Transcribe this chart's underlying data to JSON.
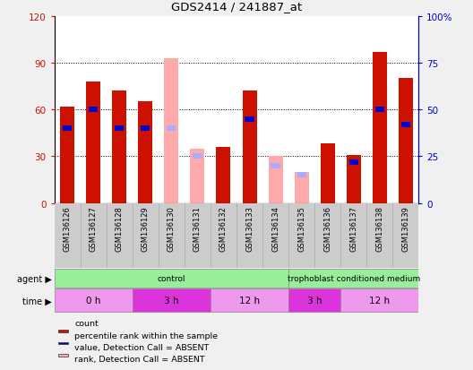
{
  "title": "GDS2414 / 241887_at",
  "samples": [
    "GSM136126",
    "GSM136127",
    "GSM136128",
    "GSM136129",
    "GSM136130",
    "GSM136131",
    "GSM136132",
    "GSM136133",
    "GSM136134",
    "GSM136135",
    "GSM136136",
    "GSM136137",
    "GSM136138",
    "GSM136139"
  ],
  "count_present": [
    62,
    78,
    72,
    65,
    0,
    0,
    36,
    72,
    0,
    0,
    38,
    31,
    97,
    80
  ],
  "rank_present": [
    40,
    50,
    40,
    40,
    0,
    0,
    0,
    45,
    0,
    0,
    0,
    22,
    50,
    42
  ],
  "count_absent": [
    0,
    0,
    0,
    0,
    93,
    35,
    0,
    0,
    30,
    20,
    0,
    0,
    0,
    0
  ],
  "rank_absent": [
    0,
    0,
    0,
    0,
    40,
    25,
    0,
    0,
    20,
    15,
    0,
    0,
    0,
    0
  ],
  "ylim_left": [
    0,
    120
  ],
  "ylim_right": [
    0,
    100
  ],
  "yticks_left": [
    0,
    30,
    60,
    90,
    120
  ],
  "yticks_right": [
    0,
    25,
    50,
    75,
    100
  ],
  "ytick_labels_left": [
    "0",
    "30",
    "60",
    "90",
    "120"
  ],
  "ytick_labels_right": [
    "0",
    "25",
    "50",
    "75",
    "100%"
  ],
  "color_count_present": "#cc1100",
  "color_rank_present": "#0000cc",
  "color_count_absent": "#ffaaaa",
  "color_rank_absent": "#aaaaff",
  "bg_color": "#f0f0f0",
  "plot_bg": "#ffffff",
  "sample_bg": "#cccccc",
  "agent_groups": [
    {
      "label": "control",
      "start": 0,
      "end": 9,
      "color": "#99ee99"
    },
    {
      "label": "trophoblast conditioned medium",
      "start": 9,
      "end": 14,
      "color": "#99ee99"
    }
  ],
  "time_groups": [
    {
      "label": "0 h",
      "start": 0,
      "end": 3,
      "color": "#ee99ee"
    },
    {
      "label": "3 h",
      "start": 3,
      "end": 6,
      "color": "#dd33dd"
    },
    {
      "label": "12 h",
      "start": 6,
      "end": 9,
      "color": "#ee99ee"
    },
    {
      "label": "3 h",
      "start": 9,
      "end": 11,
      "color": "#dd33dd"
    },
    {
      "label": "12 h",
      "start": 11,
      "end": 14,
      "color": "#ee99ee"
    }
  ],
  "legend_items": [
    {
      "label": "count",
      "color": "#cc1100"
    },
    {
      "label": "percentile rank within the sample",
      "color": "#0000cc"
    },
    {
      "label": "value, Detection Call = ABSENT",
      "color": "#ffaaaa"
    },
    {
      "label": "rank, Detection Call = ABSENT",
      "color": "#aaaaff"
    }
  ],
  "bar_width": 0.55,
  "rank_bar_width": 0.35,
  "rank_bar_height": 3.5
}
